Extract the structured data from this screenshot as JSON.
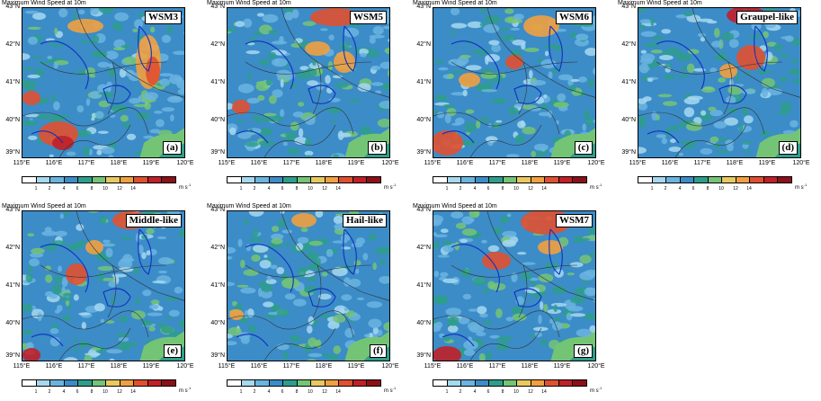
{
  "panel_title": "Maximum Wind Speed at 10m",
  "lat_labels": [
    "43°N",
    "42°N",
    "41°N",
    "40°N",
    "39°N"
  ],
  "lon_labels": [
    "115°E",
    "116°E",
    "117°E",
    "118°E",
    "119°E",
    "120°E"
  ],
  "colorbar": {
    "colors": [
      "#ffffff",
      "#a6d8f0",
      "#6ab4e0",
      "#3c8cc8",
      "#2e9e8c",
      "#74c476",
      "#e8c860",
      "#f0a040",
      "#e05030",
      "#c02028",
      "#8c1018"
    ],
    "ticks": [
      "1",
      "2",
      "4",
      "6",
      "8",
      "10",
      "12",
      "14"
    ],
    "unit": "m s",
    "unit_sup": "-1"
  },
  "panels": [
    {
      "scheme": "WSM3",
      "letter": "(a)"
    },
    {
      "scheme": "WSM5",
      "letter": "(b)"
    },
    {
      "scheme": "WSM6",
      "letter": "(c)"
    },
    {
      "scheme": "Graupel-like",
      "letter": "(d)"
    },
    {
      "scheme": "Middle-like",
      "letter": "(e)"
    },
    {
      "scheme": "Hail-like",
      "letter": "(f)"
    },
    {
      "scheme": "WSM7",
      "letter": "(g)"
    }
  ]
}
